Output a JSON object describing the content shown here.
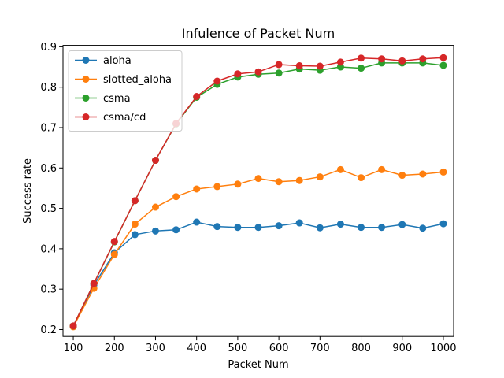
{
  "chart_data": {
    "type": "line",
    "title": "Infulence of Packet Num",
    "xlabel": "Packet Num",
    "ylabel": "Success rate",
    "xlim": [
      75,
      1025
    ],
    "ylim": [
      0.183,
      0.9035
    ],
    "x_ticks": [
      100,
      200,
      300,
      400,
      500,
      600,
      700,
      800,
      900,
      1000
    ],
    "y_ticks": [
      0.2,
      0.3,
      0.4,
      0.5,
      0.6,
      0.7,
      0.8,
      0.9
    ],
    "x": [
      100,
      150,
      200,
      250,
      300,
      350,
      400,
      450,
      500,
      550,
      600,
      650,
      700,
      750,
      800,
      850,
      900,
      950,
      1000
    ],
    "legend_position": "upper left",
    "grid": false,
    "series": [
      {
        "name": "aloha",
        "color": "#1f77b4",
        "values": [
          0.208,
          0.31,
          0.39,
          0.435,
          0.444,
          0.447,
          0.466,
          0.455,
          0.453,
          0.453,
          0.457,
          0.464,
          0.452,
          0.461,
          0.453,
          0.453,
          0.46,
          0.451,
          0.462
        ]
      },
      {
        "name": "slotted_aloha",
        "color": "#ff7f0e",
        "values": [
          0.207,
          0.302,
          0.386,
          0.461,
          0.503,
          0.529,
          0.548,
          0.554,
          0.56,
          0.574,
          0.566,
          0.569,
          0.578,
          0.596,
          0.576,
          0.596,
          0.582,
          0.585,
          0.59
        ]
      },
      {
        "name": "csma",
        "color": "#2ca02c",
        "values": [
          0.209,
          0.314,
          0.417,
          0.519,
          0.619,
          0.709,
          0.775,
          0.807,
          0.825,
          0.832,
          0.835,
          0.845,
          0.842,
          0.85,
          0.847,
          0.86,
          0.86,
          0.86,
          0.854
        ]
      },
      {
        "name": "csma/cd",
        "color": "#d62728",
        "values": [
          0.209,
          0.314,
          0.418,
          0.519,
          0.619,
          0.71,
          0.777,
          0.815,
          0.833,
          0.838,
          0.856,
          0.853,
          0.852,
          0.862,
          0.872,
          0.87,
          0.865,
          0.87,
          0.873
        ]
      }
    ]
  }
}
